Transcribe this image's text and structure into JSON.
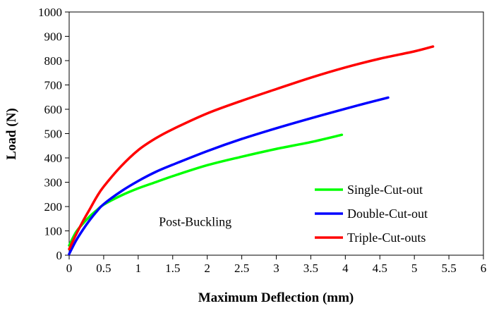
{
  "chart_data": {
    "type": "line",
    "title": "",
    "xlabel": "Maximum Deflection (mm)",
    "ylabel": "Load (N)",
    "xlim": [
      0,
      6
    ],
    "ylim": [
      0,
      1000
    ],
    "x_ticks": [
      0,
      0.5,
      1,
      1.5,
      2,
      2.5,
      3,
      3.5,
      4,
      4.5,
      5,
      5.5,
      6
    ],
    "x_tick_labels": [
      "0",
      "0.5",
      "1",
      "1.5",
      "2",
      "2.5",
      "3",
      "3.5",
      "4",
      "4.5",
      "5",
      "5.5",
      "6"
    ],
    "y_ticks": [
      0,
      100,
      200,
      300,
      400,
      500,
      600,
      700,
      800,
      900,
      1000
    ],
    "y_tick_labels": [
      "0",
      "100",
      "200",
      "300",
      "400",
      "500",
      "600",
      "700",
      "800",
      "900",
      "1000"
    ],
    "grid": false,
    "legend_position": "bottom-right",
    "annotations": [
      {
        "text": "Post-Buckling",
        "x": 1.3,
        "y": 120
      }
    ],
    "series": [
      {
        "name": "Single-Cut-out",
        "color": "#00ff00",
        "points": [
          [
            0,
            40
          ],
          [
            0.1,
            95
          ],
          [
            0.2,
            130
          ],
          [
            0.3,
            160
          ],
          [
            0.4,
            185
          ],
          [
            0.5,
            208
          ],
          [
            0.75,
            245
          ],
          [
            1.0,
            275
          ],
          [
            1.25,
            300
          ],
          [
            1.5,
            325
          ],
          [
            2.0,
            370
          ],
          [
            2.5,
            405
          ],
          [
            3.0,
            437
          ],
          [
            3.5,
            465
          ],
          [
            3.95,
            495
          ]
        ]
      },
      {
        "name": "Double-Cut-out",
        "color": "#0000ff",
        "points": [
          [
            0,
            5
          ],
          [
            0.1,
            60
          ],
          [
            0.2,
            105
          ],
          [
            0.3,
            145
          ],
          [
            0.4,
            180
          ],
          [
            0.5,
            210
          ],
          [
            0.75,
            262
          ],
          [
            1.0,
            305
          ],
          [
            1.25,
            342
          ],
          [
            1.5,
            372
          ],
          [
            2.0,
            428
          ],
          [
            2.5,
            478
          ],
          [
            3.0,
            522
          ],
          [
            3.5,
            563
          ],
          [
            4.0,
            602
          ],
          [
            4.3,
            625
          ],
          [
            4.62,
            648
          ]
        ]
      },
      {
        "name": "Triple-Cut-outs",
        "color": "#ff0000",
        "points": [
          [
            0,
            25
          ],
          [
            0.1,
            85
          ],
          [
            0.2,
            140
          ],
          [
            0.3,
            190
          ],
          [
            0.4,
            240
          ],
          [
            0.5,
            282
          ],
          [
            0.75,
            365
          ],
          [
            1.0,
            432
          ],
          [
            1.25,
            480
          ],
          [
            1.5,
            518
          ],
          [
            2.0,
            583
          ],
          [
            2.5,
            635
          ],
          [
            3.0,
            683
          ],
          [
            3.5,
            730
          ],
          [
            4.0,
            772
          ],
          [
            4.5,
            808
          ],
          [
            5.0,
            838
          ],
          [
            5.27,
            858
          ]
        ]
      }
    ]
  }
}
